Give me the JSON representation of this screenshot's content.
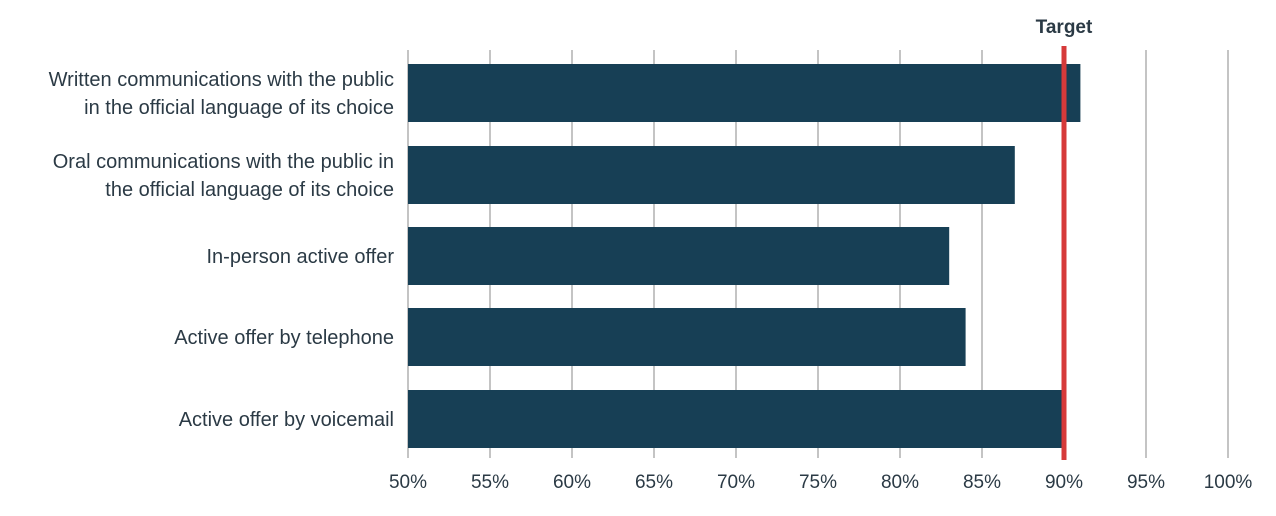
{
  "chart_data": {
    "type": "bar",
    "orientation": "horizontal",
    "categories": [
      [
        "Written communications with the public",
        "in the official language of its choice"
      ],
      [
        "Oral communications with the public in",
        "the official language of its choice"
      ],
      [
        "In-person active offer"
      ],
      [
        "Active offer by telephone"
      ],
      [
        "Active offer by voicemail"
      ]
    ],
    "values": [
      91,
      87,
      83,
      84,
      90
    ],
    "xlim": [
      50,
      100
    ],
    "xticks": [
      50,
      55,
      60,
      65,
      70,
      75,
      80,
      85,
      90,
      95,
      100
    ],
    "xtick_labels": [
      "50%",
      "55%",
      "60%",
      "65%",
      "70%",
      "75%",
      "80%",
      "85%",
      "90%",
      "95%",
      "100%"
    ],
    "grid": true,
    "target": {
      "value": 90,
      "label": "Target",
      "color": "#d63a3a"
    },
    "bar_color": "#173f55"
  }
}
